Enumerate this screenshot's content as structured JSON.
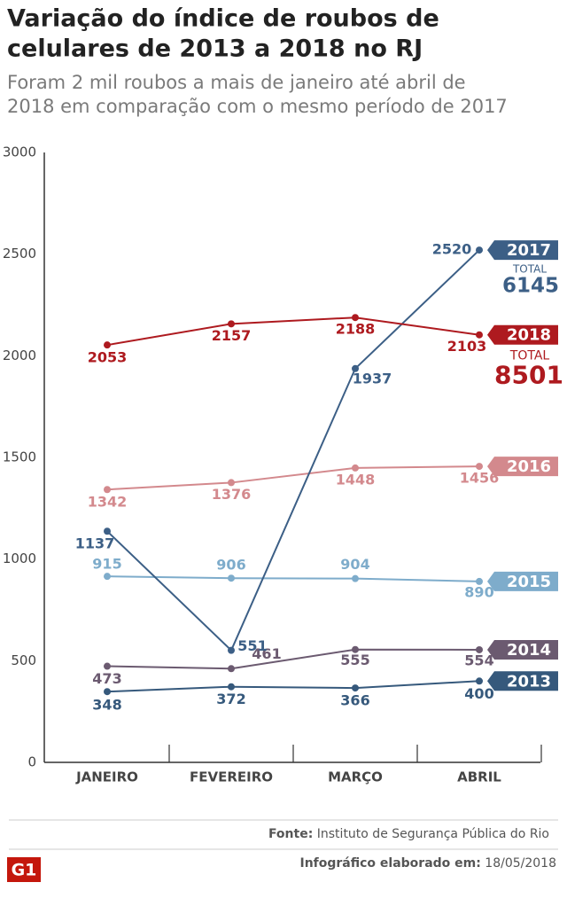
{
  "chart_data": {
    "type": "line",
    "title_lines": [
      "Variação do índice de roubos de",
      "celulares de 2013 a 2018 no RJ"
    ],
    "subtitle_lines": [
      "Foram 2 mil roubos a mais de janeiro até abril de",
      "2018 em comparação com o mesmo período de 2017"
    ],
    "categories": [
      "JANEIRO",
      "FEVEREIRO",
      "MARÇO",
      "ABRIL"
    ],
    "ylim": [
      0,
      3000
    ],
    "yticks": [
      0,
      500,
      1000,
      1500,
      2000,
      2500,
      3000
    ],
    "series": [
      {
        "name": "2013",
        "color": "#36597c",
        "values": [
          348,
          372,
          366,
          400
        ]
      },
      {
        "name": "2014",
        "color": "#6b5a70",
        "values": [
          473,
          461,
          555,
          554
        ]
      },
      {
        "name": "2015",
        "color": "#7eaccb",
        "values": [
          915,
          906,
          904,
          890
        ]
      },
      {
        "name": "2016",
        "color": "#d3898d",
        "values": [
          1342,
          1376,
          1448,
          1456
        ]
      },
      {
        "name": "2017",
        "color": "#3c5f86",
        "values": [
          1137,
          551,
          1937,
          2520
        ],
        "total_label": "TOTAL",
        "total": 6145
      },
      {
        "name": "2018",
        "color": "#ae1a1f",
        "values": [
          2053,
          2157,
          2188,
          2103
        ],
        "total_label": "TOTAL",
        "total": 8501
      }
    ],
    "source_label": "Fonte:",
    "source": "Instituto de Segurança Pública do Rio",
    "date_label": "Infográfico elaborado em:",
    "date": "18/05/2018",
    "logo": "G1"
  }
}
